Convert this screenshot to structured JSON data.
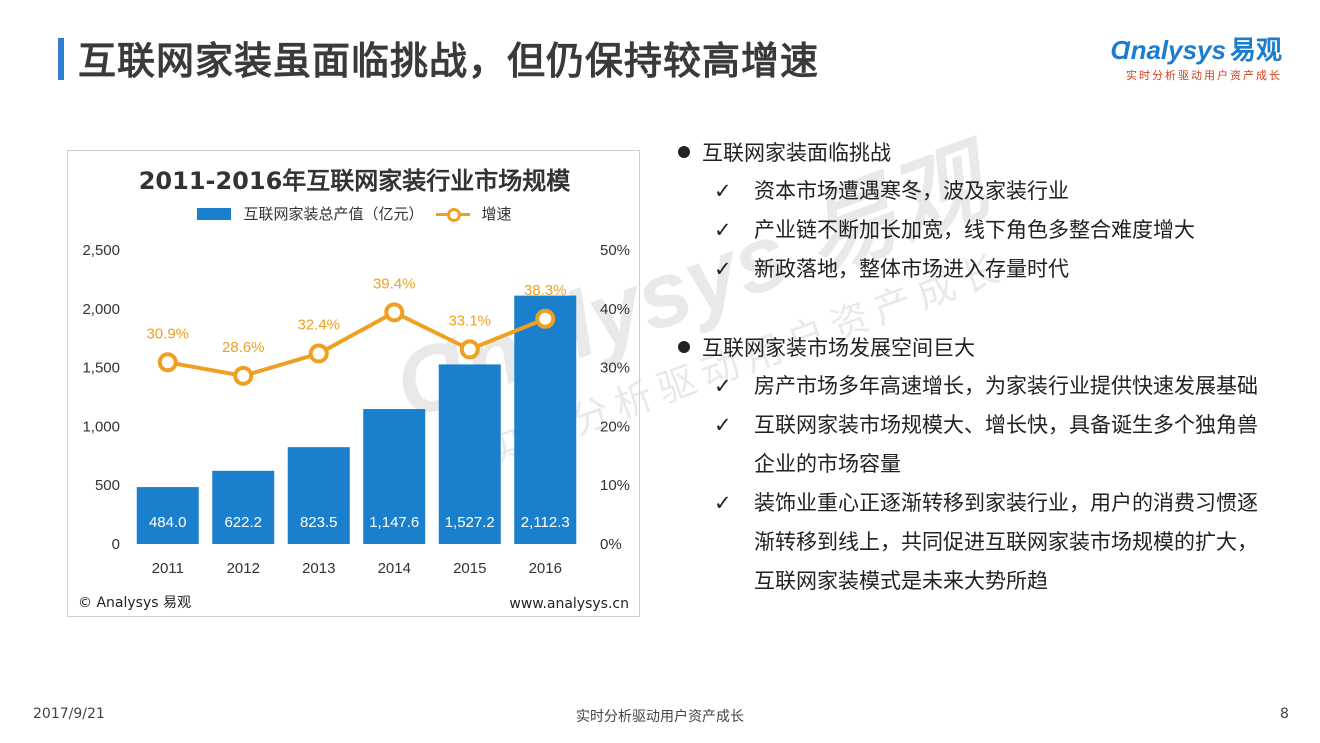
{
  "header": {
    "title": "互联网家装虽面临挑战，但仍保持较高增速"
  },
  "logo": {
    "main": "nalysys",
    "main_prefix": "Ɑ",
    "cn": "易观",
    "tagline": "实时分析驱动用户资产成长"
  },
  "watermark": {
    "main": "Ɑnalysys 易观",
    "sub": "实时分析驱动用户资产成长"
  },
  "colors": {
    "accent": "#2e7fd1",
    "bar": "#1a80cd",
    "line": "#f0a020",
    "logo_tagline": "#d04020"
  },
  "chart_data": {
    "type": "bar",
    "title": "2011-2016年互联网家装行业市场规模",
    "categories": [
      "2011",
      "2012",
      "2013",
      "2014",
      "2015",
      "2016"
    ],
    "series": [
      {
        "name": "互联网家装总产值（亿元）",
        "type": "bar",
        "axis": "left",
        "values": [
          484.0,
          622.2,
          823.5,
          1147.6,
          1527.2,
          2112.3
        ],
        "labels": [
          "484.0",
          "622.2",
          "823.5",
          "1,147.6",
          "1,527.2",
          "2,112.3"
        ]
      },
      {
        "name": "增速",
        "type": "line",
        "axis": "right",
        "values": [
          30.9,
          28.6,
          32.4,
          39.4,
          33.1,
          38.3
        ],
        "labels": [
          "30.9%",
          "28.6%",
          "32.4%",
          "39.4%",
          "33.1%",
          "38.3%"
        ]
      }
    ],
    "y_left": {
      "ylim": [
        0,
        2500
      ],
      "ticks": [
        "0",
        "500",
        "1,000",
        "1,500",
        "2,000",
        "2,500"
      ]
    },
    "y_right": {
      "ylim": [
        0,
        50
      ],
      "ticks": [
        "0%",
        "10%",
        "20%",
        "30%",
        "40%",
        "50%"
      ]
    },
    "legend_position": "top-center",
    "grid": false,
    "source_left": "© Analysys 易观",
    "source_right": "www.analysys.cn"
  },
  "bullets": [
    {
      "heading": "互联网家装面临挑战",
      "items": [
        "资本市场遭遇寒冬，波及家装行业",
        "产业链不断加长加宽，线下角色多整合难度增大",
        "新政落地，整体市场进入存量时代"
      ]
    },
    {
      "heading": "互联网家装市场发展空间巨大",
      "items": [
        "房产市场多年高速增长，为家装行业提供快速发展基础",
        "互联网家装市场规模大、增长快，具备诞生多个独角兽企业的市场容量",
        "装饰业重心正逐渐转移到家装行业，用户的消费习惯逐渐转移到线上，共同促进互联网家装市场规模的扩大，互联网家装模式是未来大势所趋"
      ]
    }
  ],
  "check_mark": "✓",
  "footer": {
    "date": "2017/9/21",
    "center": "实时分析驱动用户资产成长",
    "page": "8"
  }
}
